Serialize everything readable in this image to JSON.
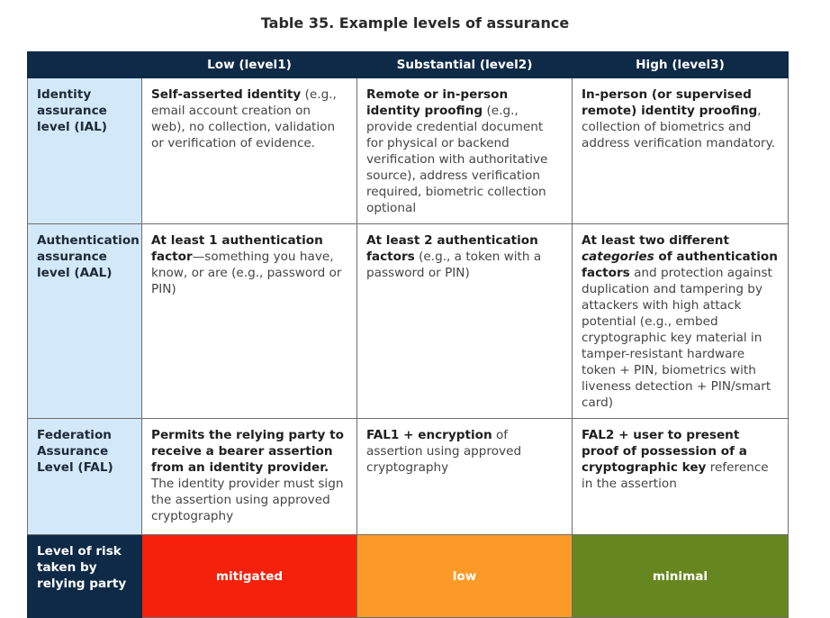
{
  "title": "Table 35. Example levels of assurance",
  "columns": [
    "",
    "Low (level1)",
    "Substantial (level2)",
    "High (level3)"
  ],
  "rows": [
    {
      "label": "Identity assurance level (IAL)",
      "cells": [
        {
          "bold": "Self-asserted identity",
          "rest": " (e.g., email account creation on web), no collection, validation or verification of evidence."
        },
        {
          "bold": "Remote or in-person identity proofing",
          "rest": " (e.g., provide credential document for physical or backend verification with authoritative source), address verification required, biometric collection optional"
        },
        {
          "bold": "In-person (or supervised remote) identity proofing",
          "rest": ", collection of biometrics and address verification mandatory."
        }
      ]
    },
    {
      "label": "Authentication assurance level (AAL)",
      "cells": [
        {
          "bold": "At least 1 authentication factor",
          "rest": "—something you have, know, or are (e.g., password or PIN)"
        },
        {
          "bold": "At least 2 authentication factors",
          "rest": " (e.g., a token with a password or PIN)"
        },
        {
          "bold_pre": "At least two different ",
          "italic": "categories",
          "bold": " of authentication factors",
          "rest": " and protection against duplication and tampering by attackers with high attack potential (e.g., embed cryptographic key material in tamper-resistant hardware token + PIN, biometrics with liveness detection + PIN/smart card)"
        }
      ]
    },
    {
      "label": "Federation Assurance Level (FAL)",
      "cells": [
        {
          "bold": "Permits the relying party to receive a bearer assertion from an identity provider.",
          "rest": " The identity provider must sign the assertion using approved cryptography"
        },
        {
          "bold": "FAL1 + encryption",
          "rest": " of assertion using approved cryptography"
        },
        {
          "bold": "FAL2 + user to present proof of possession of a cryptographic key",
          "rest": " reference in the assertion"
        }
      ]
    }
  ],
  "risk": {
    "label": "Level of risk taken by relying party",
    "levels": [
      {
        "text": "mitigated",
        "color": "#f5210a"
      },
      {
        "text": "low",
        "color": "#fb9a26"
      },
      {
        "text": "minimal",
        "color": "#66871f"
      }
    ]
  }
}
